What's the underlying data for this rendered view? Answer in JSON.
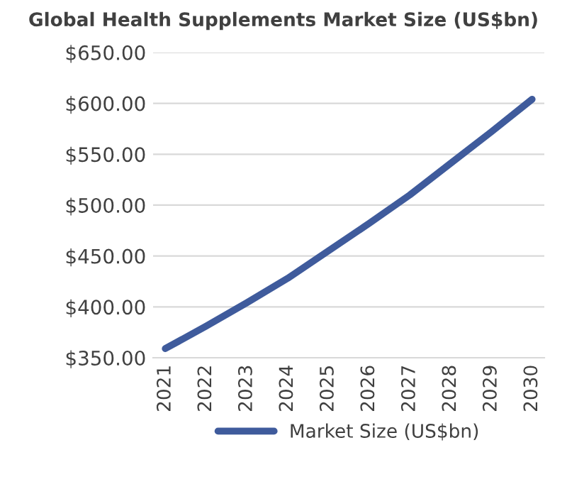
{
  "chart_data": {
    "type": "line",
    "title": "Global Health Supplements Market Size (US$bn)",
    "categories": [
      "2021",
      "2022",
      "2023",
      "2024",
      "2025",
      "2026",
      "2027",
      "2028",
      "2029",
      "2030"
    ],
    "series": [
      {
        "name": "Market Size (US$bn)",
        "color": "#3f5b9c",
        "values": [
          359,
          381,
          404,
          428,
          455,
          482,
          510,
          541,
          572,
          604
        ]
      }
    ],
    "ylim": [
      350,
      650
    ],
    "yticks": [
      {
        "value": 350,
        "label": "$350.00"
      },
      {
        "value": 400,
        "label": "$400.00"
      },
      {
        "value": 450,
        "label": "$450.00"
      },
      {
        "value": 500,
        "label": "$500.00"
      },
      {
        "value": 550,
        "label": "$550.00"
      },
      {
        "value": 600,
        "label": "$600.00"
      },
      {
        "value": 650,
        "label": "$650.00"
      }
    ],
    "grid": "y",
    "legend": "bottom",
    "marker": "none",
    "line_style": "solid"
  }
}
